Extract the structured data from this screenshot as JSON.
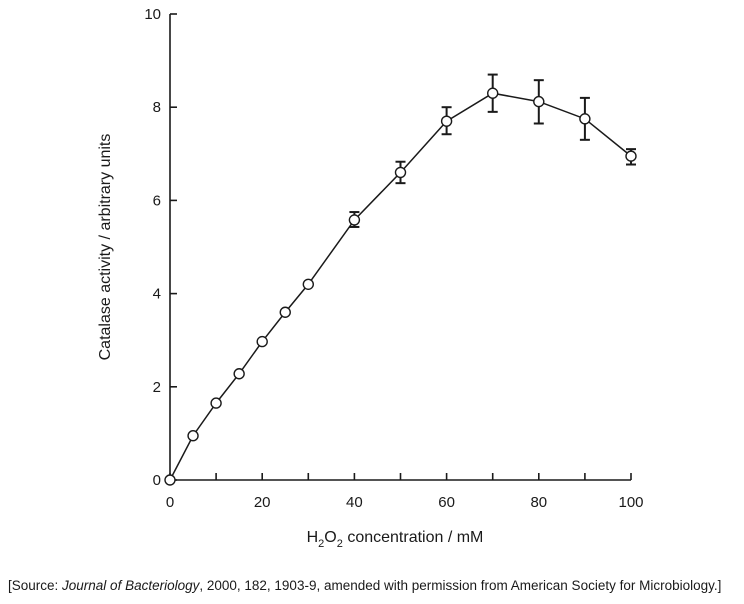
{
  "chart_data": {
    "type": "line",
    "xlabel": {
      "prefix": "H",
      "sub1": "2",
      "mid": "O",
      "sub2": "2",
      "suffix": " concentration / mM"
    },
    "ylabel": "Catalase activity / arbitrary units",
    "xlim": [
      0,
      100
    ],
    "ylim": [
      0,
      10
    ],
    "x_ticks": [
      0,
      20,
      40,
      60,
      80,
      100
    ],
    "x_minor_ticks": [
      10,
      30,
      50,
      70,
      90
    ],
    "y_ticks": [
      0,
      2,
      4,
      6,
      8,
      10
    ],
    "grid": false,
    "marker": "open-circle",
    "series": [
      {
        "points": [
          {
            "x": 0,
            "y": 0
          },
          {
            "x": 5,
            "y": 0.95
          },
          {
            "x": 10,
            "y": 1.65
          },
          {
            "x": 15,
            "y": 2.28
          },
          {
            "x": 20,
            "y": 2.97
          },
          {
            "x": 25,
            "y": 3.6
          },
          {
            "x": 30,
            "y": 4.2
          },
          {
            "x": 40,
            "y": 5.58,
            "err_low": 5.43,
            "err_high": 5.75
          },
          {
            "x": 50,
            "y": 6.6,
            "err_low": 6.37,
            "err_high": 6.83
          },
          {
            "x": 60,
            "y": 7.7,
            "err_low": 7.42,
            "err_high": 8.0
          },
          {
            "x": 70,
            "y": 8.3,
            "err_low": 7.9,
            "err_high": 8.7
          },
          {
            "x": 80,
            "y": 8.12,
            "err_low": 7.65,
            "err_high": 8.58
          },
          {
            "x": 90,
            "y": 7.75,
            "err_low": 7.3,
            "err_high": 8.2
          },
          {
            "x": 100,
            "y": 6.95,
            "err_low": 6.77,
            "err_high": 7.1
          }
        ]
      }
    ]
  },
  "source": {
    "open": "[Source: ",
    "journal": "Journal of Bacteriology",
    "rest": ", 2000, 182, 1903-9, amended with permission from American Society for Microbiology.]"
  }
}
